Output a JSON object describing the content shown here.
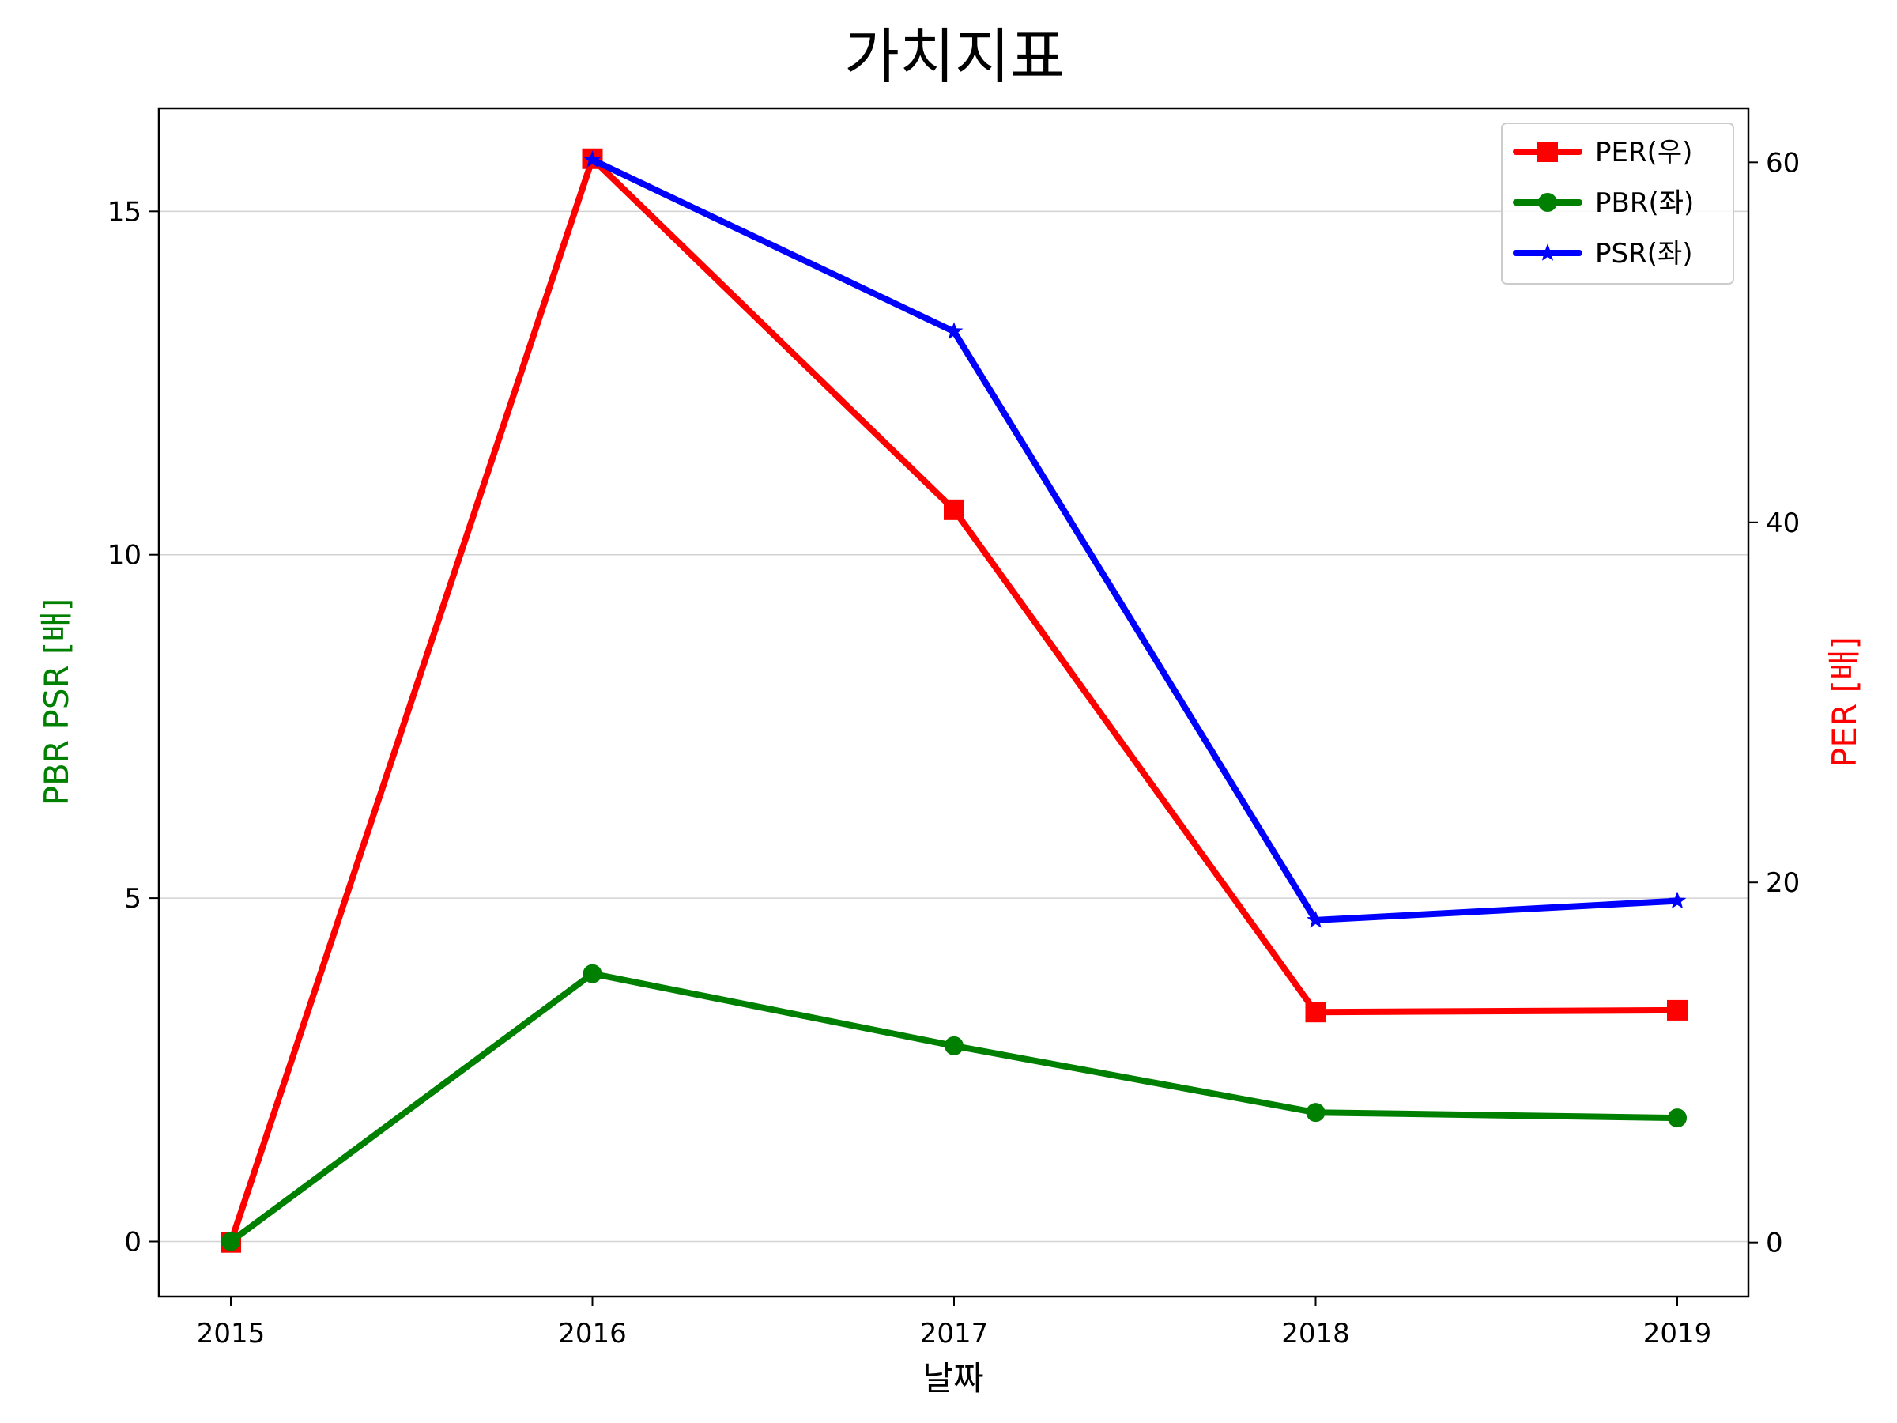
{
  "chart_data": {
    "type": "line",
    "title": "가치지표",
    "xlabel": "날짜",
    "ylabel_left": "PBR PSR [배]",
    "ylabel_right": "PER [배]",
    "categories": [
      "2015",
      "2016",
      "2017",
      "2018",
      "2019"
    ],
    "ylim_left": [
      -0.8,
      16.5
    ],
    "ylim_right": [
      -3.0,
      63.0
    ],
    "yticks_left": [
      "0",
      "5",
      "10",
      "15"
    ],
    "yticks_right": [
      "0",
      "20",
      "40",
      "60"
    ],
    "grid": "horizontal",
    "legend_position": "top-right",
    "series": [
      {
        "name": "PER(우)",
        "axis": "right",
        "color": "#ff0000",
        "marker": "square",
        "values": [
          0.0,
          60.2,
          40.7,
          12.8,
          12.9
        ]
      },
      {
        "name": "PBR(좌)",
        "axis": "left",
        "color": "#008000",
        "marker": "circle",
        "values": [
          0.0,
          3.9,
          2.85,
          1.88,
          1.8
        ]
      },
      {
        "name": "PSR(좌)",
        "axis": "left",
        "color": "#0000ff",
        "marker": "star",
        "values": [
          null,
          15.75,
          13.25,
          4.68,
          4.96
        ]
      }
    ]
  }
}
